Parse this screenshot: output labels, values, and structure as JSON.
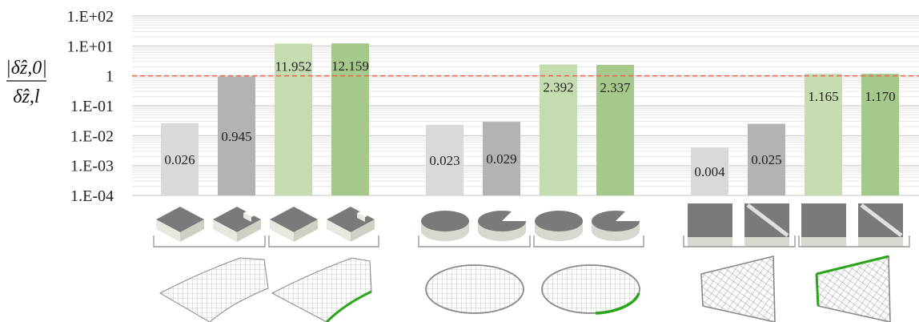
{
  "chart_data": {
    "type": "bar",
    "yscale": "log",
    "ylim": [
      0.0001,
      100
    ],
    "yticks": [
      {
        "value": 100,
        "label": "1.E+02"
      },
      {
        "value": 10,
        "label": "1.E+01"
      },
      {
        "value": 1,
        "label": "1"
      },
      {
        "value": 0.1,
        "label": "1.E-01"
      },
      {
        "value": 0.01,
        "label": "1.E-02"
      },
      {
        "value": 0.001,
        "label": "1.E-03"
      },
      {
        "value": 0.0001,
        "label": "1.E-04"
      }
    ],
    "ylabel": {
      "numerator": "|δ̂z,0|",
      "denominator": "δ̂z,l"
    },
    "reference_line": {
      "value": 1,
      "color": "#f06a4a",
      "style": "dashed"
    },
    "grid": true,
    "groups": [
      {
        "bars": [
          {
            "value": 0.026,
            "label": "0.026",
            "color": "#d9d9d9"
          },
          {
            "value": 0.945,
            "label": "0.945",
            "color": "#b3b3b3"
          },
          {
            "value": 11.952,
            "label": "11.952",
            "color": "#c5dbb0"
          },
          {
            "value": 12.159,
            "label": "12.159",
            "color": "#a5c98a"
          }
        ]
      },
      {
        "bars": [
          {
            "value": 0.023,
            "label": "0.023",
            "color": "#d9d9d9"
          },
          {
            "value": 0.029,
            "label": "0.029",
            "color": "#b3b3b3"
          },
          {
            "value": 2.392,
            "label": "2.392",
            "color": "#c5dbb0"
          },
          {
            "value": 2.337,
            "label": "2.337",
            "color": "#a5c98a"
          }
        ]
      },
      {
        "bars": [
          {
            "value": 0.004,
            "label": "0.004",
            "color": "#d9d9d9"
          },
          {
            "value": 0.025,
            "label": "0.025",
            "color": "#b3b3b3"
          },
          {
            "value": 1.165,
            "label": "1.165",
            "color": "#c5dbb0"
          },
          {
            "value": 1.17,
            "label": "1.170",
            "color": "#a5c98a"
          }
        ]
      }
    ],
    "icons": [
      "square-plate-icon",
      "notched-square-plate-icon",
      "square-plate-icon",
      "notched-square-plate-icon",
      "disc-icon",
      "cut-disc-icon",
      "disc-icon",
      "cut-disc-icon",
      "square-tile-icon",
      "diagonal-crack-tile-icon",
      "square-tile-icon",
      "diagonal-crack-tile-icon"
    ],
    "meshes": [
      "curved-shell-mesh",
      "curved-shell-mesh-green-edge",
      "circular-plate-mesh",
      "circular-plate-mesh-green-edge",
      "trapezoid-plate-mesh",
      "trapezoid-plate-mesh-green-edge"
    ]
  }
}
